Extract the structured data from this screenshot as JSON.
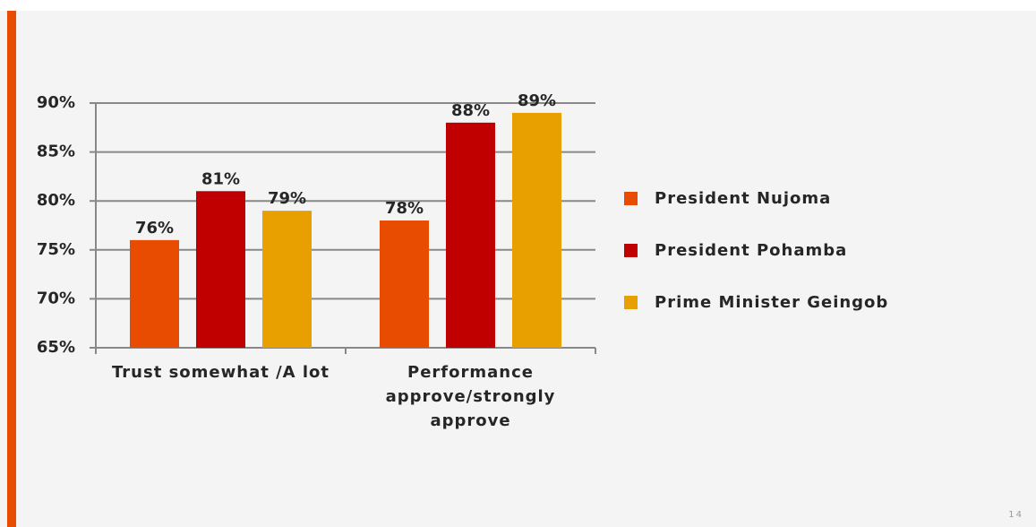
{
  "slide": {
    "page_number": "14"
  },
  "chart_data": {
    "type": "bar",
    "categories": [
      "Trust somewhat /A lot",
      "Performance approve/strongly approve"
    ],
    "series": [
      {
        "name": "President Nujoma",
        "color": "#e84c00",
        "values": [
          76,
          78
        ],
        "value_labels": [
          "76%",
          "78%"
        ]
      },
      {
        "name": "President Pohamba",
        "color": "#c00000",
        "values": [
          81,
          88
        ],
        "value_labels": [
          "81%",
          "88%"
        ]
      },
      {
        "name": "Prime Minister Geingob",
        "color": "#e8a000",
        "values": [
          79,
          89
        ],
        "value_labels": [
          "79%",
          "89%"
        ]
      }
    ],
    "ylim": [
      65,
      90
    ],
    "yticks": [
      {
        "value": 65,
        "label": "65%"
      },
      {
        "value": 70,
        "label": "70%"
      },
      {
        "value": 75,
        "label": "75%"
      },
      {
        "value": 80,
        "label": "80%"
      },
      {
        "value": 85,
        "label": "85%"
      },
      {
        "value": 90,
        "label": "90%"
      }
    ],
    "grid": true,
    "legend": "right"
  }
}
